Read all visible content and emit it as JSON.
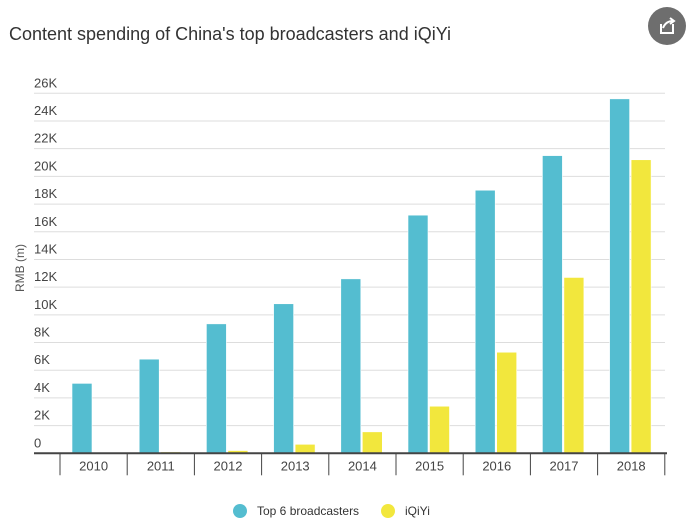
{
  "title": "Content spending of China's top broadcasters and iQiYi",
  "share_icon": "share-icon",
  "chart_data": {
    "type": "bar",
    "title": "Content spending of China's top broadcasters and iQiYi",
    "xlabel": "",
    "ylabel": "RMB (m)",
    "ylim": [
      0,
      26000
    ],
    "yticks": [
      0,
      2000,
      4000,
      6000,
      8000,
      10000,
      12000,
      14000,
      16000,
      18000,
      20000,
      22000,
      24000,
      26000
    ],
    "ytick_labels": [
      "0",
      "2K",
      "4K",
      "6K",
      "8K",
      "10K",
      "12K",
      "14K",
      "16K",
      "18K",
      "20K",
      "22K",
      "24K",
      "26K"
    ],
    "categories": [
      "2010",
      "2011",
      "2012",
      "2013",
      "2014",
      "2015",
      "2016",
      "2017",
      "2018"
    ],
    "series": [
      {
        "name": "Top 6 broadcasters",
        "color": "#54bdd0",
        "values": [
          5050,
          6800,
          9350,
          10800,
          12600,
          17200,
          19000,
          21500,
          25600
        ]
      },
      {
        "name": "iQiYi",
        "color": "#f2e73d",
        "values": [
          0,
          100,
          200,
          650,
          1550,
          3400,
          7300,
          12700,
          21200
        ]
      }
    ],
    "grid": true,
    "legend": "bottom-center"
  }
}
